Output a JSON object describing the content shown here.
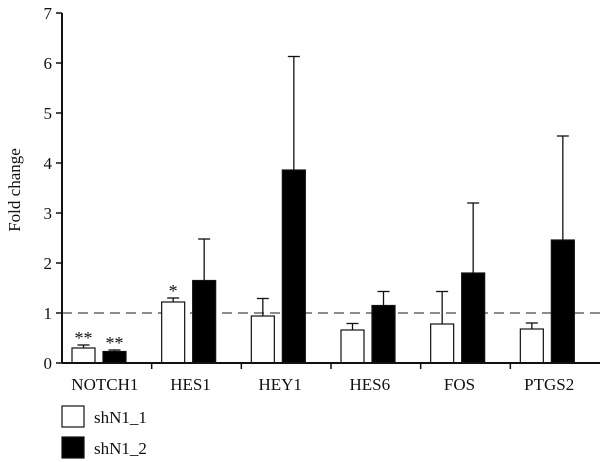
{
  "chart_data": {
    "type": "bar",
    "xlabel": "",
    "ylabel": "Fold change",
    "ylim": [
      0,
      7
    ],
    "yticks": [
      0,
      1,
      2,
      3,
      4,
      5,
      6,
      7
    ],
    "reference_line": 1,
    "categories": [
      "NOTCH1",
      "HES1",
      "HEY1",
      "HES6",
      "FOS",
      "PTGS2"
    ],
    "series": [
      {
        "name": "shN1_1",
        "fill": "#ffffff",
        "values": [
          0.3,
          1.22,
          0.94,
          0.66,
          0.78,
          0.68
        ],
        "errors": [
          0.06,
          0.08,
          0.35,
          0.13,
          0.65,
          0.12
        ],
        "significance": [
          "**",
          "*",
          "",
          "",
          "",
          ""
        ]
      },
      {
        "name": "shN1_2",
        "fill": "#000000",
        "values": [
          0.23,
          1.65,
          3.86,
          1.15,
          1.8,
          2.46
        ],
        "errors": [
          0.03,
          0.83,
          2.27,
          0.28,
          1.4,
          2.08
        ],
        "significance": [
          "**",
          "",
          "",
          "",
          "",
          ""
        ]
      }
    ],
    "legend_position": "bottom-left"
  }
}
